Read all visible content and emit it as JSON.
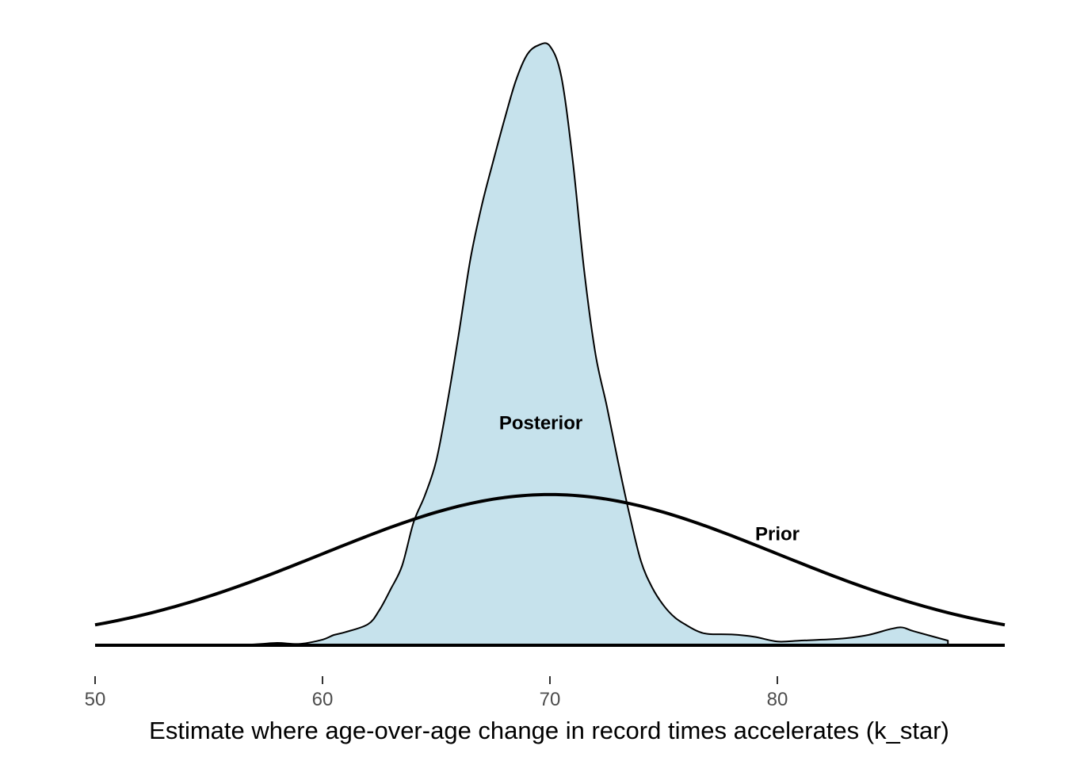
{
  "chart_data": {
    "type": "area",
    "xlabel": "Estimate where age-over-age change in record times accelerates (k_star)",
    "ylabel": "",
    "xlim": [
      50,
      90
    ],
    "ylim": [
      0,
      1
    ],
    "x_ticks": [
      50,
      60,
      70,
      80
    ],
    "x_tick_labels": [
      "50",
      "60",
      "70",
      "80"
    ],
    "grid": false,
    "legend": "none",
    "y_axis_shown": false,
    "colors": {
      "posterior_fill": "#c6e2ec",
      "line": "#000000",
      "tick_text": "#4d4d4d"
    },
    "series": [
      {
        "name": "Posterior",
        "kind": "density-filled",
        "x": [
          55,
          57,
          58,
          59,
          60,
          60.5,
          61,
          62,
          62.5,
          63,
          63.5,
          64,
          64.5,
          65,
          65.5,
          66,
          66.5,
          67,
          67.5,
          68,
          68.5,
          69,
          69.5,
          70,
          70.5,
          71,
          71.5,
          72,
          72.5,
          73,
          73.5,
          74,
          74.5,
          75,
          75.5,
          76,
          76.5,
          77,
          78,
          79,
          80,
          81,
          82,
          83,
          84,
          85,
          85.5,
          86,
          87.5
        ],
        "y": [
          0,
          0.002,
          0.005,
          0.003,
          0.012,
          0.022,
          0.028,
          0.045,
          0.075,
          0.12,
          0.17,
          0.262,
          0.32,
          0.394,
          0.521,
          0.668,
          0.824,
          0.939,
          1.033,
          1.123,
          1.206,
          1.262,
          1.282,
          1.28,
          1.215,
          1.037,
          0.803,
          0.623,
          0.511,
          0.391,
          0.279,
          0.18,
          0.123,
          0.085,
          0.059,
          0.043,
          0.03,
          0.024,
          0.023,
          0.018,
          0.008,
          0.01,
          0.012,
          0.015,
          0.022,
          0.035,
          0.038,
          0.03,
          0.01
        ]
      },
      {
        "name": "Prior",
        "kind": "normal-density",
        "mean": 70,
        "sd": 10,
        "peak": 0.322,
        "x_range": [
          50,
          90
        ]
      }
    ],
    "annotations": [
      {
        "text": "Posterior",
        "x": 69.6,
        "y": 0.475
      },
      {
        "text": "Prior",
        "x": 80,
        "y": 0.238
      }
    ]
  }
}
